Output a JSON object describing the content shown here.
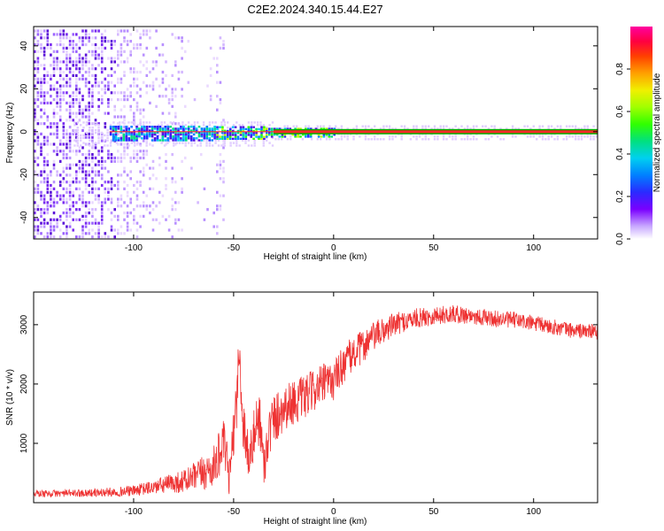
{
  "title": "C2E2.2024.340.15.44.E27",
  "chart_data": [
    {
      "type": "heatmap",
      "xlabel": "Height of straight line (km)",
      "ylabel": "Frequency (Hz)",
      "xlim": [
        -150,
        132
      ],
      "ylim": [
        -50,
        49
      ],
      "xticks": [
        -100,
        -50,
        0,
        50,
        100
      ],
      "yticks": [
        -40,
        -20,
        0,
        20,
        40
      ],
      "colorbar": {
        "label": "Normalized spectral amplitude",
        "range": [
          0,
          1
        ],
        "ticks": [
          0.0,
          0.2,
          0.4,
          0.6,
          0.8
        ]
      },
      "colors": {
        "low": "#e8d8ff",
        "mid_low": "#7a2cf0",
        "mid": "#00a0ff",
        "high": "#ff2a2a",
        "carrier_line": "#00a000"
      },
      "carrier": {
        "frequency_hz": 0,
        "x_start": -112,
        "x_end": 132
      }
    },
    {
      "type": "line",
      "xlabel": "Height of straight line (km)",
      "ylabel": "SNR (10 * v/v)",
      "xlim": [
        -150,
        132
      ],
      "ylim": [
        0,
        3550
      ],
      "xticks": [
        -100,
        -50,
        0,
        50,
        100
      ],
      "yticks": [
        1000,
        2000,
        3000
      ],
      "series": [
        {
          "color": "#ee3333",
          "x": [
            -150,
            -140,
            -130,
            -120,
            -110,
            -100,
            -95,
            -90,
            -85,
            -80,
            -75,
            -70,
            -65,
            -60,
            -55,
            -52,
            -50,
            -47,
            -45,
            -42,
            -40,
            -37,
            -35,
            -33,
            -30,
            -25,
            -20,
            -15,
            -10,
            -5,
            0,
            5,
            10,
            15,
            20,
            25,
            30,
            35,
            40,
            50,
            60,
            70,
            80,
            90,
            100,
            110,
            120,
            132
          ],
          "values": [
            150,
            155,
            160,
            165,
            180,
            200,
            230,
            260,
            300,
            330,
            360,
            420,
            500,
            600,
            1000,
            400,
            1200,
            2400,
            1300,
            700,
            1100,
            1500,
            600,
            1100,
            1400,
            1600,
            1700,
            1750,
            1900,
            2000,
            2050,
            2350,
            2500,
            2650,
            2800,
            2900,
            3000,
            3050,
            3100,
            3150,
            3180,
            3150,
            3100,
            3080,
            3020,
            2960,
            2900,
            2880
          ],
          "noise_amplitude": [
            60,
            60,
            60,
            70,
            80,
            90,
            110,
            120,
            150,
            170,
            200,
            250,
            300,
            350,
            400,
            350,
            400,
            700,
            500,
            400,
            450,
            500,
            400,
            450,
            450,
            400,
            380,
            380,
            350,
            350,
            330,
            330,
            300,
            280,
            250,
            230,
            200,
            180,
            170,
            160,
            150,
            150,
            140,
            140,
            140,
            130,
            130,
            130
          ]
        }
      ]
    }
  ]
}
